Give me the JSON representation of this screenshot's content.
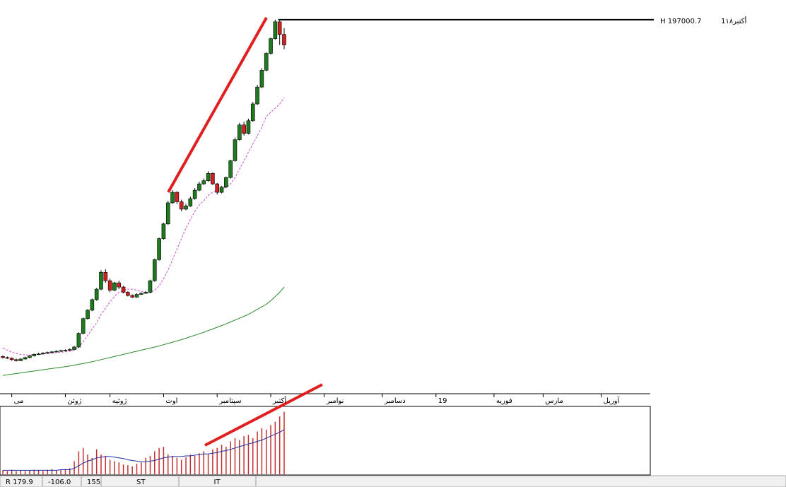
{
  "chart_data": {
    "type": "candlestick",
    "xlim": [
      0,
      145
    ],
    "xticks": [
      {
        "value": 2,
        "label": "مى"
      },
      {
        "value": 14,
        "label": "ژوئن"
      },
      {
        "value": 24,
        "label": "ژوئیه"
      },
      {
        "value": 36,
        "label": "اوت"
      },
      {
        "value": 48,
        "label": "سپتامبر"
      },
      {
        "value": 60,
        "label": "أکتبر"
      },
      {
        "value": 72,
        "label": "نوامبر"
      },
      {
        "value": 85,
        "label": "دسامبر"
      },
      {
        "value": 97,
        "label": "19"
      },
      {
        "value": 110,
        "label": "فوریه"
      },
      {
        "value": 121,
        "label": "مارس"
      },
      {
        "value": 134,
        "label": "آوریل"
      }
    ],
    "ylim": [
      20000,
      203000
    ],
    "colors": {
      "up": "#1f7a1f",
      "down": "#d42020"
    },
    "open": [
      37000,
      36500,
      36200,
      35500,
      35000,
      35800,
      36500,
      37300,
      38000,
      38200,
      38600,
      38900,
      39200,
      39500,
      39800,
      40000,
      40300,
      41500,
      48000,
      55000,
      59000,
      64000,
      69000,
      77000,
      73000,
      68500,
      72000,
      70000,
      67500,
      66000,
      65200,
      66500,
      67000,
      67500,
      73000,
      83000,
      93000,
      100000,
      110000,
      115000,
      110500,
      107000,
      108500,
      112000,
      116000,
      119000,
      120500,
      124000,
      119000,
      115000,
      117500,
      122000,
      130000,
      140000,
      147000,
      143000,
      149000,
      157000,
      165000,
      173000,
      181000,
      188000,
      196000,
      190000
    ],
    "close": [
      36500,
      36200,
      35500,
      35000,
      35800,
      36500,
      37300,
      38000,
      38200,
      38600,
      38900,
      39200,
      39500,
      39800,
      40000,
      40300,
      41500,
      48000,
      55000,
      59000,
      64000,
      69000,
      77000,
      73000,
      68500,
      72000,
      70000,
      67500,
      66000,
      65200,
      66500,
      67000,
      67500,
      73000,
      83000,
      93000,
      100000,
      110000,
      115000,
      110500,
      107000,
      108500,
      112000,
      116000,
      119000,
      120500,
      124000,
      119000,
      115000,
      117500,
      122000,
      130000,
      140000,
      147000,
      143000,
      149000,
      157000,
      165000,
      173000,
      181000,
      188000,
      196000,
      190000,
      185000
    ],
    "high": [
      37500,
      37000,
      36600,
      36000,
      36200,
      36900,
      37700,
      38400,
      38800,
      39000,
      39300,
      39600,
      39900,
      40200,
      40400,
      40800,
      42000,
      48500,
      55500,
      59500,
      64500,
      69500,
      78000,
      78500,
      74000,
      72500,
      73000,
      70500,
      68000,
      66500,
      67000,
      67500,
      68000,
      73500,
      83500,
      93500,
      100500,
      111000,
      116000,
      115500,
      111500,
      109500,
      113000,
      117000,
      120000,
      121500,
      125000,
      124500,
      119500,
      118000,
      122500,
      130500,
      141000,
      148000,
      148500,
      150000,
      158000,
      166000,
      174000,
      181500,
      188500,
      197000.7,
      196500,
      193000
    ],
    "low": [
      36000,
      35800,
      35000,
      34600,
      34800,
      35500,
      36200,
      37000,
      37700,
      37900,
      38300,
      38600,
      38900,
      39200,
      39500,
      39700,
      40000,
      41000,
      47500,
      54500,
      58500,
      63500,
      68500,
      72000,
      67500,
      68000,
      69000,
      67000,
      65500,
      64800,
      65000,
      66200,
      66800,
      67000,
      72500,
      82500,
      92500,
      99500,
      109500,
      109500,
      106000,
      106500,
      108000,
      111500,
      115500,
      118500,
      120000,
      118500,
      114000,
      114500,
      117000,
      121500,
      129500,
      139500,
      142000,
      142500,
      148500,
      156500,
      164500,
      172500,
      180500,
      187500,
      185000,
      183000
    ],
    "overlays": [
      {
        "color": "#d050d0",
        "dash": true,
        "values": [
          41000,
          40000,
          39000,
          38500,
          38000,
          37800,
          37700,
          37800,
          38000,
          38200,
          38400,
          38600,
          38800,
          39000,
          39200,
          39500,
          40000,
          41500,
          44000,
          47000,
          50000,
          53000,
          57000,
          60000,
          63000,
          65500,
          67500,
          68500,
          69000,
          69000,
          68500,
          68000,
          67500,
          67500,
          68500,
          70500,
          74000,
          78000,
          83000,
          88000,
          93000,
          98000,
          102000,
          106000,
          109000,
          111000,
          113500,
          115000,
          116000,
          116500,
          117500,
          119000,
          122000,
          126000,
          130000,
          134000,
          138000,
          142000,
          146000,
          151000,
          153000,
          155000,
          157000,
          160000
        ]
      },
      {
        "color": "#2a8a2a",
        "dash": false,
        "values": [
          28000,
          28300,
          28600,
          28900,
          29200,
          29500,
          29800,
          30100,
          30400,
          30700,
          31000,
          31300,
          31600,
          31900,
          32200,
          32500,
          32900,
          33300,
          33700,
          34100,
          34500,
          35000,
          35500,
          36000,
          36500,
          37000,
          37500,
          38000,
          38500,
          39000,
          39500,
          40000,
          40500,
          41000,
          41500,
          42000,
          42600,
          43200,
          43800,
          44400,
          45000,
          45700,
          46400,
          47100,
          47800,
          48500,
          49300,
          50100,
          50900,
          51700,
          52500,
          53400,
          54300,
          55200,
          56100,
          57000,
          58200,
          59400,
          60600,
          61800,
          63500,
          65500,
          67500,
          70000
        ]
      }
    ],
    "high_marker": {
      "value": 197000.7,
      "label": "H 197000.7",
      "date": "1أکتبر۱۸"
    },
    "volume": {
      "ylim": [
        0,
        100
      ],
      "color": "#c03030",
      "ma_color": "#2030a0",
      "values": [
        6,
        5,
        7,
        5,
        6,
        5,
        6,
        7,
        6,
        5,
        7,
        8,
        6,
        7,
        8,
        9,
        20,
        35,
        40,
        30,
        25,
        38,
        30,
        28,
        22,
        20,
        18,
        15,
        14,
        12,
        16,
        18,
        25,
        28,
        35,
        40,
        42,
        30,
        28,
        25,
        22,
        26,
        30,
        28,
        32,
        35,
        30,
        38,
        40,
        45,
        42,
        50,
        55,
        52,
        58,
        60,
        55,
        65,
        70,
        68,
        75,
        80,
        88,
        95
      ],
      "ma": [
        6,
        6,
        6,
        6,
        6,
        6,
        6,
        6,
        6,
        6,
        6,
        6,
        6,
        7,
        7,
        7,
        9,
        13,
        17,
        20,
        22,
        25,
        26,
        27,
        27,
        26,
        25,
        24,
        22,
        21,
        20,
        19,
        19,
        20,
        21,
        23,
        25,
        26,
        27,
        27,
        27,
        28,
        28,
        29,
        30,
        31,
        31,
        32,
        33,
        35,
        36,
        38,
        40,
        42,
        44,
        46,
        48,
        50,
        52,
        55,
        58,
        61,
        64,
        68
      ]
    }
  },
  "status_bar": [
    "R 179.9",
    "-106.0",
    "155",
    "ST",
    "IT"
  ]
}
